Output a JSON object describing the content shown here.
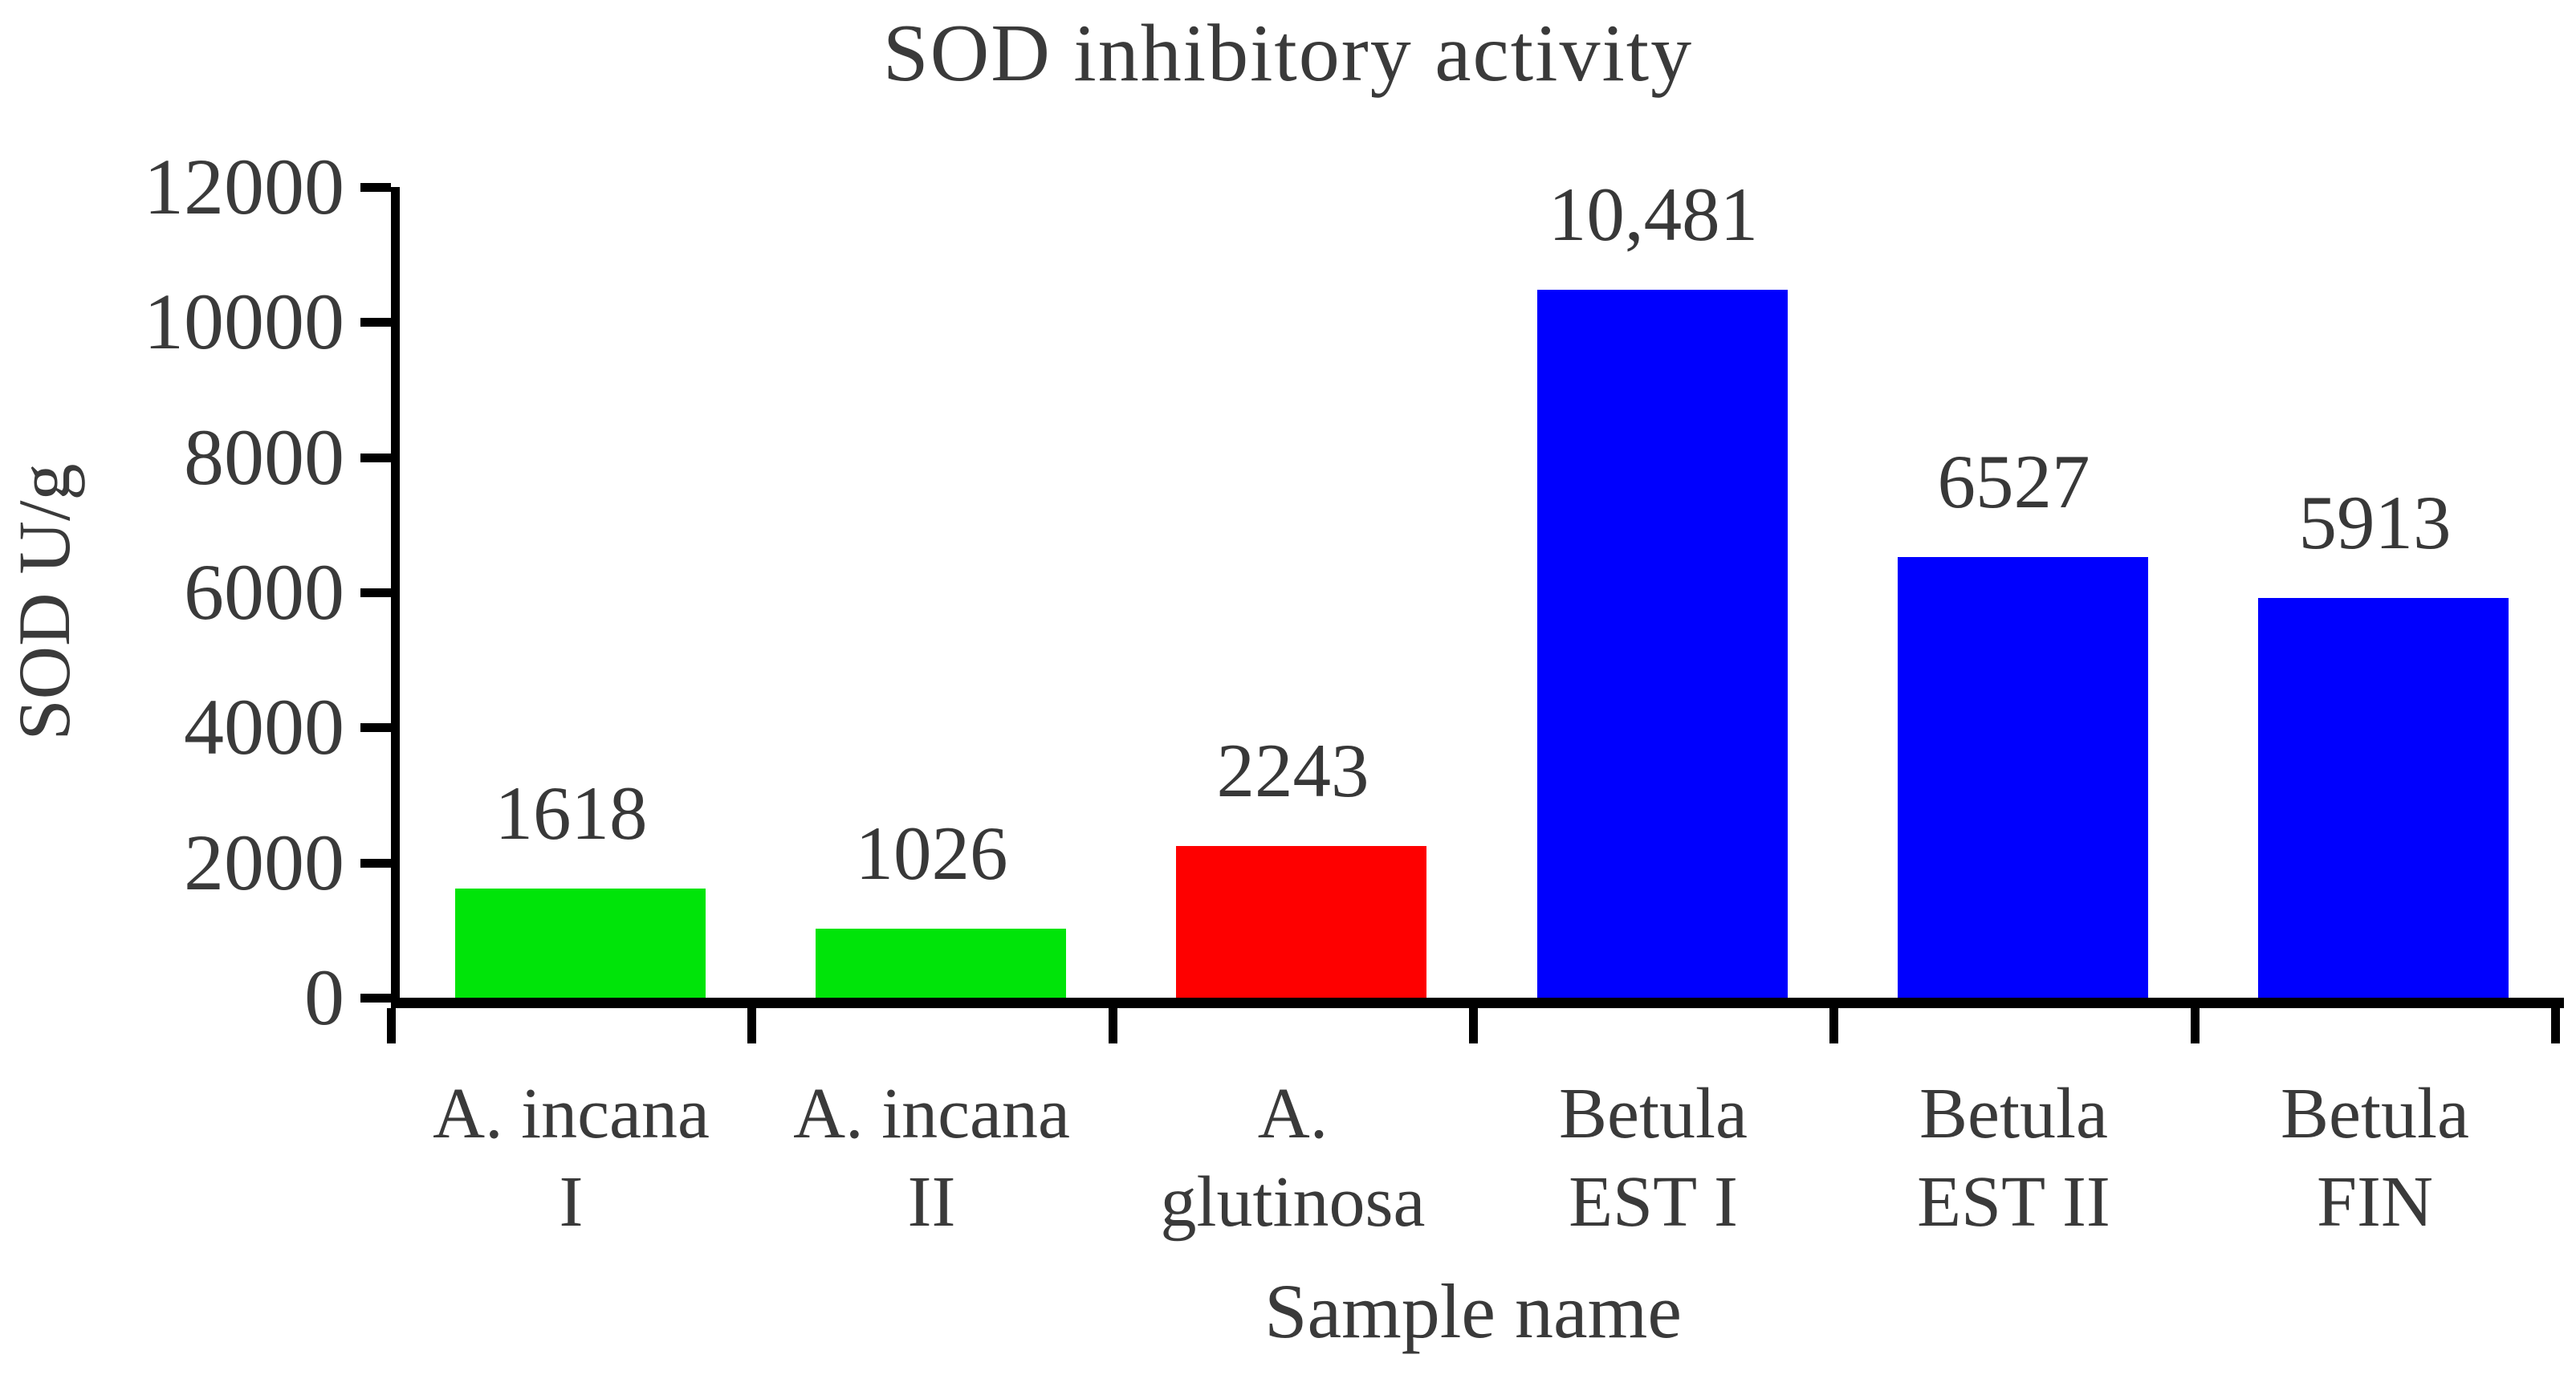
{
  "chart_data": {
    "type": "bar",
    "title": "SOD inhibitory activity",
    "xlabel": "Sample name",
    "ylabel": "SOD U/g",
    "categories": [
      "A. incana\nI",
      "A. incana\nII",
      "A.\nglutinosa",
      "Betula\nEST I",
      "Betula\nEST II",
      "Betula\nFIN"
    ],
    "values": [
      1618,
      1026,
      2243,
      10481,
      6527,
      5913
    ],
    "value_labels": [
      "1618",
      "1026",
      "2243",
      "10,481",
      "6527",
      "5913"
    ],
    "bar_colors": [
      "#00e409",
      "#00e409",
      "#fe0000",
      "#0000fe",
      "#0000fe",
      "#0000fe"
    ],
    "ylim": [
      0,
      12000
    ],
    "yticks": [
      0,
      2000,
      4000,
      6000,
      8000,
      10000,
      12000
    ],
    "ytick_labels": [
      "0",
      "2000",
      "4000",
      "6000",
      "8000",
      "10000",
      "12000"
    ],
    "grid": false,
    "legend": "none",
    "text_color": "#3a3a3a",
    "axis_color": "#000000"
  }
}
